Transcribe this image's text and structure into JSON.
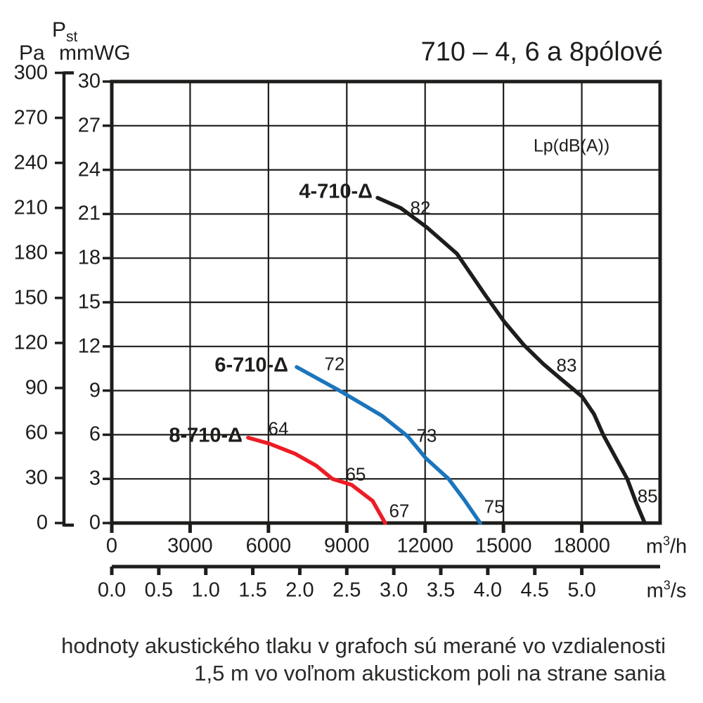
{
  "page": {
    "pressure_symbol": {
      "base": "P",
      "sub": "st"
    },
    "y_primary_unit": "Pa",
    "y_secondary_unit": "mmWG",
    "title": "710 – 4, 6 a 8pólové",
    "legend_label": "Lp(dB(A))",
    "flow_unit_hour": {
      "base": "m",
      "sup": "3",
      "rest": "/h"
    },
    "flow_unit_second": {
      "base": "m",
      "sup": "3",
      "rest": "/s"
    },
    "note_line1": "hodnoty akustického tlaku v grafoch sú merané vo vzdialenosti",
    "note_line2": "1,5 m vo voľnom akustickom poli na strane sania"
  },
  "chart_data": {
    "type": "line",
    "title": "710 – 4, 6 a 8pólové",
    "sound_pressure_label": "Lp(dB(A))",
    "grid": true,
    "x_axis": {
      "unit": "m3/h",
      "ticks": [
        0,
        3000,
        6000,
        9000,
        12000,
        15000,
        18000
      ],
      "range": [
        0,
        21000
      ]
    },
    "x_axis_secondary": {
      "unit": "m3/s",
      "tick_labels": [
        "0.0",
        "0.5",
        "1.0",
        "1.5",
        "2.0",
        "2.5",
        "3.0",
        "3.5",
        "4.0",
        "4.5",
        "5.0"
      ],
      "m3h_per_m3s": 3600
    },
    "y_axis": {
      "unit": "mmWG",
      "ticks": [
        30,
        27,
        24,
        21,
        18,
        15,
        12,
        9,
        6,
        3,
        0
      ],
      "range": [
        0,
        30
      ]
    },
    "y_axis_secondary": {
      "unit": "Pa",
      "ticks": [
        300,
        270,
        240,
        210,
        180,
        150,
        120,
        90,
        60,
        30,
        0
      ],
      "pa_per_mmwg": 9.80665
    },
    "series": [
      {
        "name": "4-710-Δ",
        "color": "#1d1d1b",
        "noise_db": [
          82,
          83,
          85
        ],
        "points_m3h_mmwg": [
          [
            10180,
            22.1
          ],
          [
            11070,
            21.4
          ],
          [
            12060,
            20.1
          ],
          [
            13220,
            18.3
          ],
          [
            14300,
            15.5
          ],
          [
            15020,
            13.7
          ],
          [
            15780,
            12.1
          ],
          [
            16530,
            10.8
          ],
          [
            17260,
            9.7
          ],
          [
            18010,
            8.6
          ],
          [
            18470,
            7.4
          ],
          [
            18820,
            6.0
          ],
          [
            19280,
            4.5
          ],
          [
            19740,
            3.0
          ],
          [
            20080,
            1.4
          ],
          [
            20410,
            0
          ]
        ]
      },
      {
        "name": "6-710-Δ",
        "color": "#1b75bc",
        "noise_db": [
          72,
          73,
          75
        ],
        "points_m3h_mmwg": [
          [
            7080,
            10.6
          ],
          [
            8720,
            9.0
          ],
          [
            10340,
            7.3
          ],
          [
            11330,
            5.9
          ],
          [
            12030,
            4.4
          ],
          [
            12900,
            3.0
          ],
          [
            13490,
            1.6
          ],
          [
            14110,
            0
          ]
        ]
      },
      {
        "name": "8-710-Δ",
        "color": "#ed1c24",
        "noise_db": [
          64,
          65,
          67
        ],
        "points_m3h_mmwg": [
          [
            5220,
            5.8
          ],
          [
            6030,
            5.4
          ],
          [
            7030,
            4.7
          ],
          [
            7830,
            3.9
          ],
          [
            8450,
            3.0
          ],
          [
            9180,
            2.6
          ],
          [
            9990,
            1.5
          ],
          [
            10470,
            0
          ]
        ]
      }
    ],
    "noise_labels": [
      {
        "text": "82",
        "x_m3h": 11820,
        "y_mmwg": 21.4
      },
      {
        "text": "83",
        "x_m3h": 17420,
        "y_mmwg": 10.7
      },
      {
        "text": "85",
        "x_m3h": 20520,
        "y_mmwg": 1.8
      },
      {
        "text": "72",
        "x_m3h": 8530,
        "y_mmwg": 10.8
      },
      {
        "text": "73",
        "x_m3h": 12060,
        "y_mmwg": 5.9
      },
      {
        "text": "75",
        "x_m3h": 14650,
        "y_mmwg": 1.1
      },
      {
        "text": "64",
        "x_m3h": 6380,
        "y_mmwg": 6.4
      },
      {
        "text": "65",
        "x_m3h": 9340,
        "y_mmwg": 3.3
      },
      {
        "text": "67",
        "x_m3h": 11010,
        "y_mmwg": 0.8
      }
    ]
  }
}
